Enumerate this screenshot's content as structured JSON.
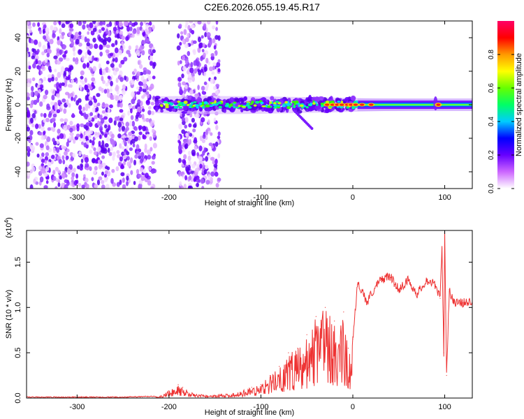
{
  "title": "C2E6.2026.055.19.45.R17",
  "chart_data": [
    {
      "type": "heatmap",
      "title": "C2E6.2026.055.19.45.R17",
      "xlabel": "Height of straight line (km)",
      "ylabel": "Frequency (Hz)",
      "xlim": [
        -355,
        130
      ],
      "ylim": [
        -50,
        50
      ],
      "xticks": [
        -300,
        -200,
        -100,
        0,
        100
      ],
      "yticks": [
        -40,
        -20,
        0,
        20,
        40
      ],
      "colorbar": {
        "label": "Normalized spectral amplitude",
        "range": [
          0.0,
          1.0
        ],
        "ticks": [
          0.0,
          0.2,
          0.4,
          0.6,
          0.8
        ],
        "colormap": [
          "#ffffff",
          "#cc66ff",
          "#6600ff",
          "#0000ff",
          "#00ccff",
          "#00ff66",
          "#66ff00",
          "#ffff00",
          "#ff9900",
          "#ff0000",
          "#ff0066"
        ]
      },
      "features": [
        {
          "name": "broadband noise",
          "x_from": -355,
          "x_to": -215,
          "freq_from": -50,
          "freq_to": 50
        },
        {
          "name": "broadband noise",
          "x_from": -190,
          "x_to": -145,
          "freq_from": -50,
          "freq_to": 50
        },
        {
          "name": "signal band",
          "x_from": -215,
          "x_to": 130,
          "center_freq": 0,
          "peak_x": 90
        }
      ]
    },
    {
      "type": "line",
      "title": "",
      "xlabel": "Height of straight line (km)",
      "ylabel": "SNR (10 * v/v)",
      "y_multiplier": "(x10",
      "y_multiplier_exp": "4",
      "y_multiplier_close": ")",
      "xlim": [
        -355,
        130
      ],
      "ylim": [
        0,
        1.85
      ],
      "xticks": [
        -300,
        -200,
        -100,
        0,
        100
      ],
      "yticks": [
        "0.0",
        "0.5",
        "1.0",
        "1.5"
      ],
      "color": "#ee3333",
      "series": [
        {
          "name": "SNR",
          "x": [
            -355,
            -300,
            -250,
            -210,
            -200,
            -190,
            -185,
            -175,
            -160,
            -130,
            -110,
            -100,
            -90,
            -80,
            -70,
            -60,
            -50,
            -40,
            -30,
            -20,
            -10,
            -5,
            0,
            5,
            10,
            15,
            20,
            30,
            40,
            50,
            60,
            70,
            80,
            90,
            95,
            97,
            99,
            100,
            102,
            105,
            110,
            120,
            130
          ],
          "y": [
            0.01,
            0.01,
            0.01,
            0.02,
            0.08,
            0.15,
            0.12,
            0.06,
            0.03,
            0.05,
            0.12,
            0.15,
            0.25,
            0.35,
            0.5,
            0.55,
            0.7,
            0.9,
            1.0,
            0.85,
            0.95,
            0.55,
            0.65,
            1.25,
            1.2,
            1.05,
            1.15,
            1.3,
            1.35,
            1.2,
            1.3,
            1.15,
            1.3,
            1.25,
            1.1,
            1.65,
            0.5,
            1.85,
            0.25,
            1.2,
            1.05,
            1.05,
            1.07
          ]
        }
      ]
    }
  ]
}
